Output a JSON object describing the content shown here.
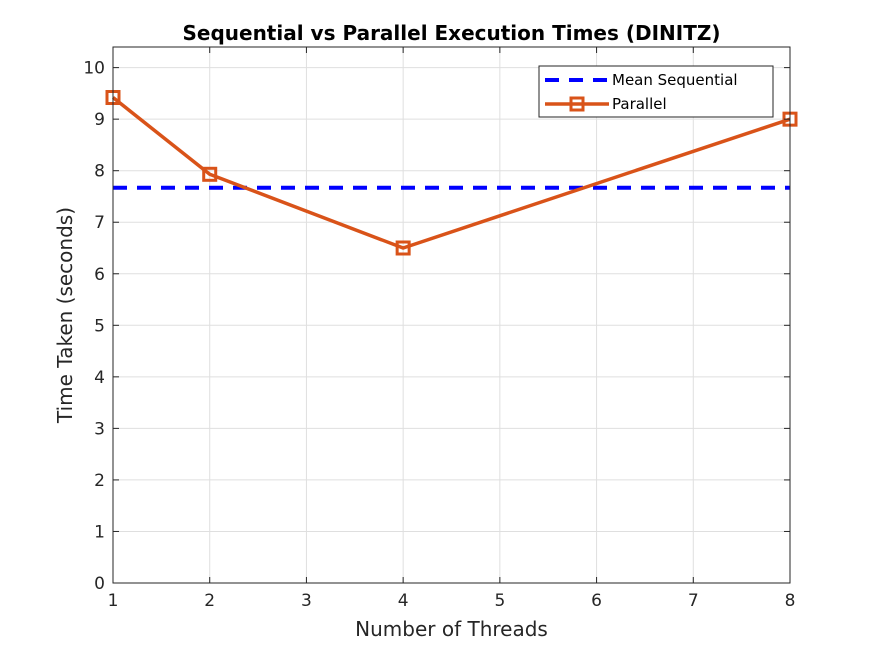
{
  "chart_data": {
    "type": "line",
    "title": "Sequential vs Parallel Execution Times (DINITZ)",
    "xlabel": "Number of Threads",
    "ylabel": "Time Taken (seconds)",
    "x_ticks": [
      "1",
      "2",
      "3",
      "4",
      "5",
      "6",
      "7",
      "8"
    ],
    "y_ticks": [
      "0",
      "1",
      "2",
      "3",
      "4",
      "5",
      "6",
      "7",
      "8",
      "9",
      "10"
    ],
    "xlim": [
      1,
      8
    ],
    "ylim": [
      0,
      10.4
    ],
    "grid": true,
    "legend_position": "top-right",
    "x": [
      1,
      2,
      4,
      8
    ],
    "series": [
      {
        "name": "Mean Sequential",
        "type": "hline",
        "value": 7.67,
        "color": "#0000ff",
        "line_style": "dashed"
      },
      {
        "name": "Parallel",
        "type": "line",
        "marker": "square",
        "x": [
          1,
          2,
          4,
          8
        ],
        "values": [
          9.42,
          7.93,
          6.5,
          9.0
        ],
        "color": "#d95319",
        "line_style": "solid"
      }
    ]
  }
}
